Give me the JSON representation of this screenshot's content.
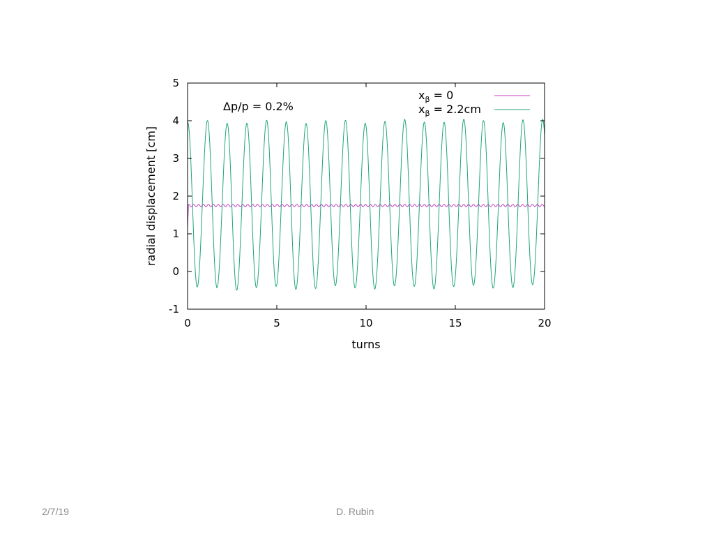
{
  "chart_data": {
    "type": "line",
    "xlabel": "turns",
    "ylabel": "radial displacement [cm]",
    "xlim": [
      0,
      20
    ],
    "ylim": [
      -1,
      5
    ],
    "xticks": [
      0,
      5,
      10,
      15,
      20
    ],
    "yticks": [
      -1,
      0,
      1,
      2,
      3,
      4,
      5
    ],
    "grid": false,
    "legend_position": "top-right",
    "annotation": "Δp/p = 0.2%",
    "series": [
      {
        "name_main": "x",
        "name_sub": "β",
        "name_rest": " = 0",
        "color": "#c040c0",
        "mean": 1.75,
        "amplitude": 0.03,
        "x": [
          0,
          20
        ],
        "y": [
          1.75,
          1.75
        ]
      },
      {
        "name_main": "x",
        "name_sub": "β",
        "name_rest": " = 2.2cm",
        "color": "#1fa57a",
        "mean": 1.75,
        "amplitude": 2.2,
        "period_turns": 1.105,
        "x": [
          0,
          0.5,
          1.0,
          1.6,
          2.1,
          2.7,
          3.2,
          3.8,
          4.3,
          4.9,
          5.4,
          6.0,
          6.5,
          7.0,
          7.6,
          8.1,
          8.7,
          9.2,
          9.8,
          10.3,
          10.9,
          11.4,
          11.9,
          12.5,
          13.0,
          13.6,
          14.1,
          14.7,
          15.2,
          15.8,
          16.3,
          16.9,
          17.4,
          17.9,
          18.5,
          19.0,
          19.6,
          20.0
        ],
        "y": [
          3.9,
          -0.45,
          3.9,
          -0.45,
          3.95,
          -0.45,
          3.95,
          -0.45,
          3.9,
          -0.45,
          3.9,
          -0.45,
          3.85,
          -0.4,
          4.0,
          -0.4,
          3.9,
          -0.4,
          3.9,
          -0.35,
          3.95,
          -0.4,
          3.9,
          -0.45,
          3.95,
          -0.45,
          3.85,
          -0.45,
          3.9,
          -0.45,
          3.9,
          -0.45,
          3.9,
          -0.45,
          3.95,
          -0.45,
          3.9,
          3.85
        ]
      }
    ]
  },
  "footer": {
    "date": "2/7/19",
    "author": "D. Rubin"
  }
}
